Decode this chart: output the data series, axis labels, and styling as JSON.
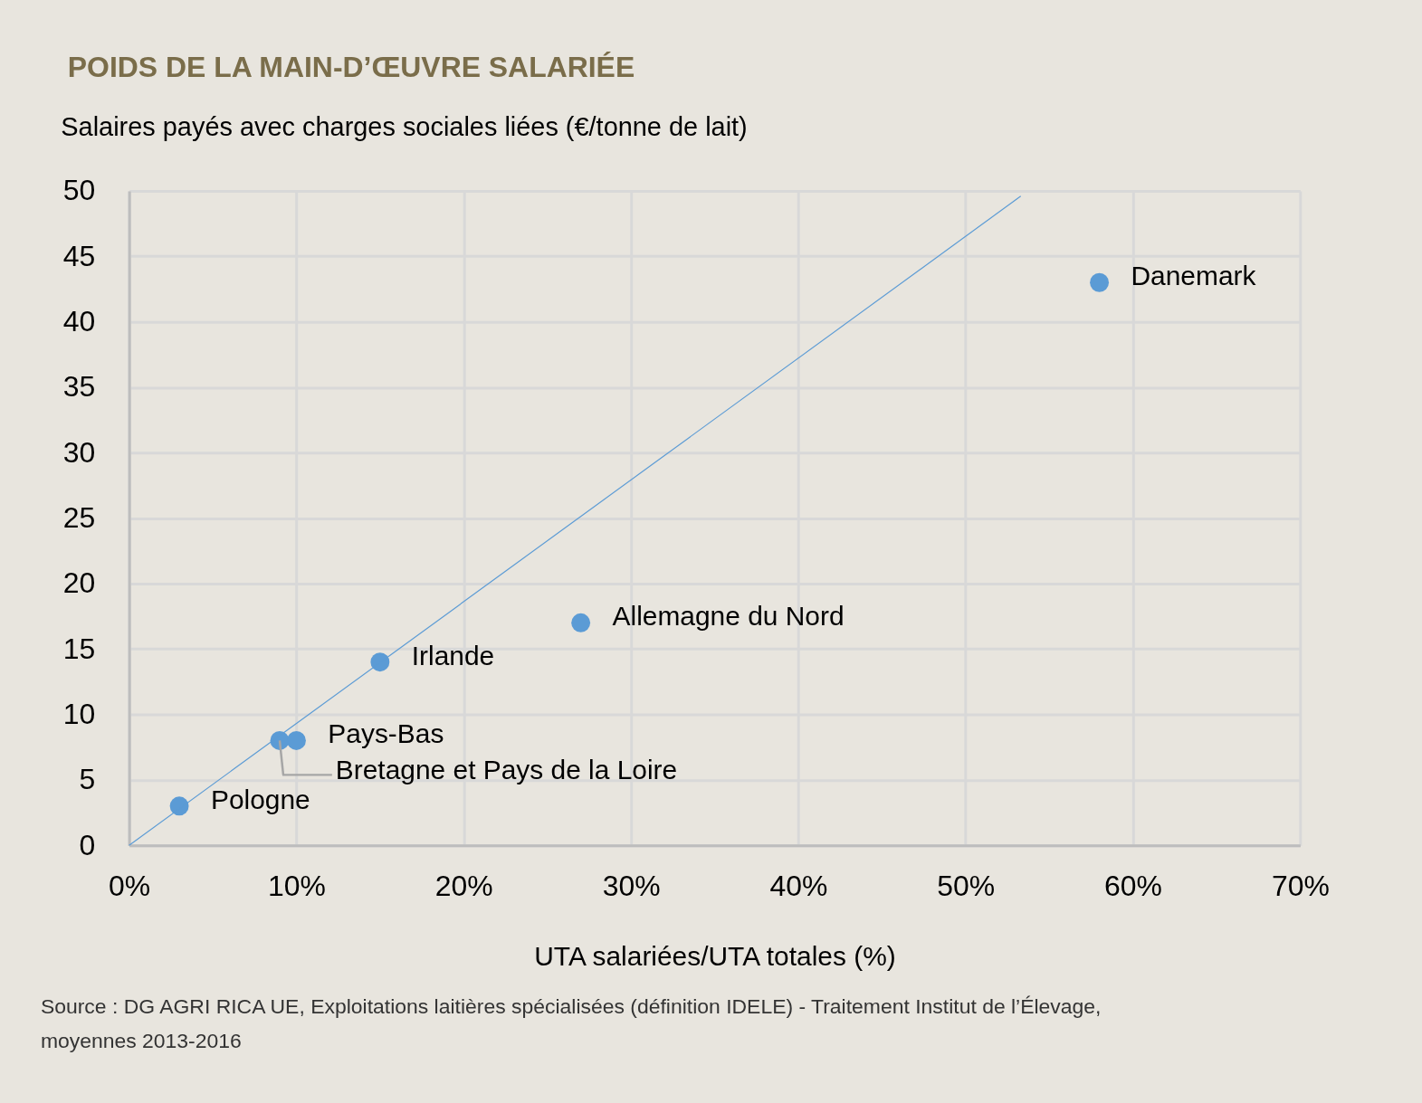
{
  "chart_data": {
    "type": "scatter",
    "title": "POIDS DE LA MAIN-D’ŒUVRE SALARIÉE",
    "ylabel": "Salaires payés avec charges sociales liées (€/tonne de lait)",
    "xlabel": "UTA salariées/UTA totales (%)",
    "series": [
      {
        "color": "#5b9bd5",
        "marker": "circle",
        "x": [
          3,
          9,
          10,
          15,
          27,
          58
        ],
        "values": [
          3,
          8,
          8,
          14,
          17,
          43
        ]
      },
      {
        "type": "line",
        "color": "#5b9bd5",
        "x": [
          0,
          53.3
        ],
        "values": [
          0,
          49.6
        ]
      }
    ],
    "xlim": [
      0,
      70
    ],
    "xticks": [
      {
        "value": 0,
        "label": "0%"
      },
      {
        "value": 10,
        "label": "10%"
      },
      {
        "value": 20,
        "label": "20%"
      },
      {
        "value": 30,
        "label": "30%"
      },
      {
        "value": 40,
        "label": "40%"
      },
      {
        "value": 50,
        "label": "50%"
      },
      {
        "value": 60,
        "label": "60%"
      },
      {
        "value": 70,
        "label": "70%"
      }
    ],
    "ylim": [
      0,
      50
    ],
    "yticks": [
      0,
      5,
      10,
      15,
      20,
      25,
      30,
      35,
      40,
      45,
      50
    ],
    "grid": true,
    "annotations": [
      {
        "text": "Pologne",
        "x": 3,
        "y": 3
      },
      {
        "text": "Bretagne et Pays de la Loire",
        "x": 9,
        "y": 8
      },
      {
        "text": "Pays-Bas",
        "x": 10,
        "y": 8
      },
      {
        "text": "Irlande",
        "x": 15,
        "y": 14
      },
      {
        "text": "Allemagne du Nord",
        "x": 27,
        "y": 17
      },
      {
        "text": "Danemark",
        "x": 58,
        "y": 43
      },
      "Source : DG AGRI RICA UE, Exploitations laitières spécialisées (définition IDELE) - Traitement Institut de l’Élevage, moyennes 2013-2016"
    ]
  }
}
